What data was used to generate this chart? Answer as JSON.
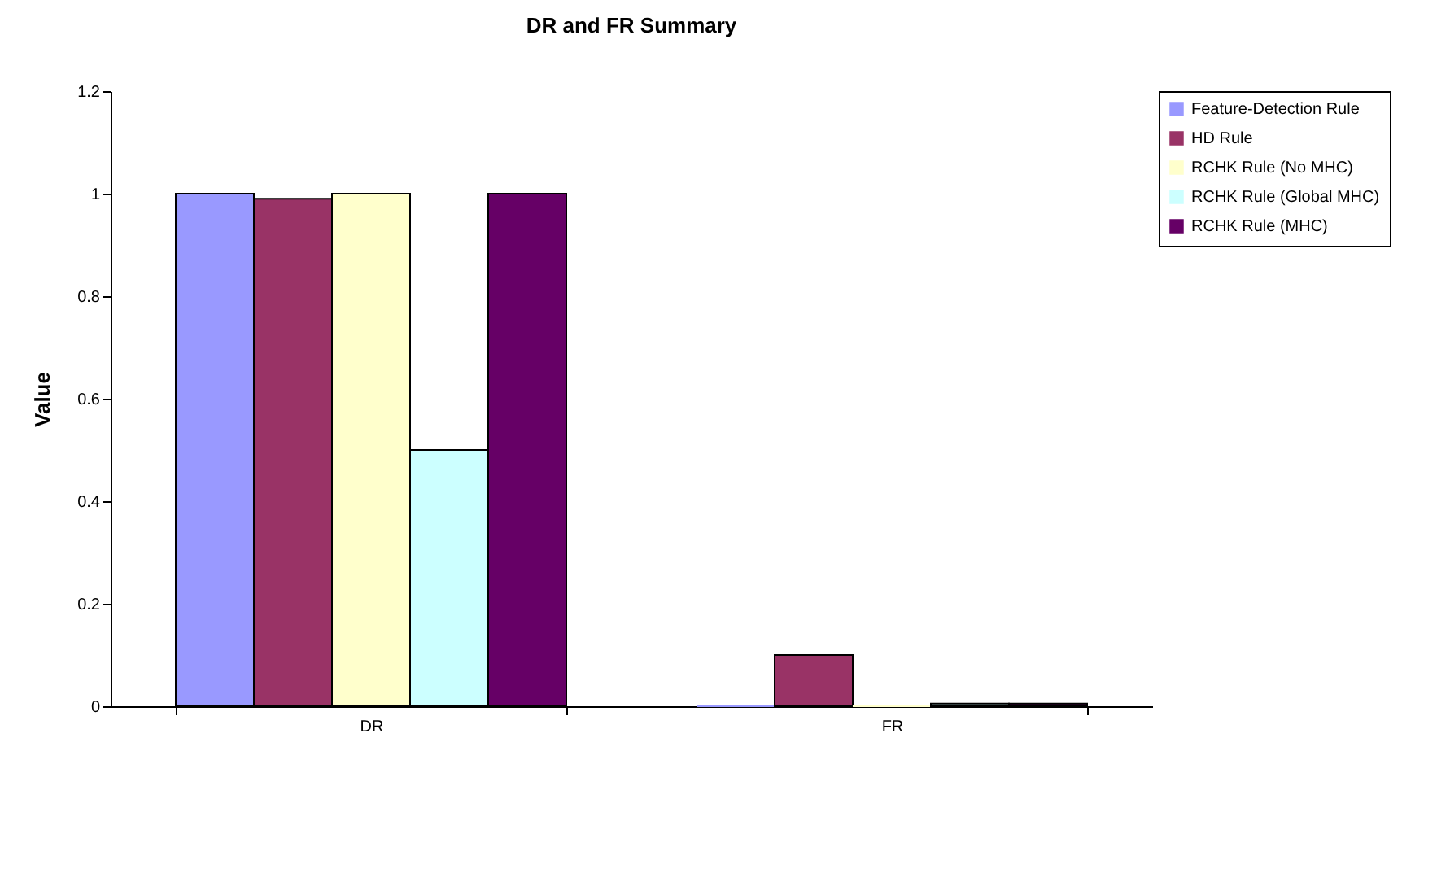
{
  "chart_data": {
    "type": "bar",
    "title": "DR and FR Summary",
    "ylabel": "Value",
    "categories": [
      "DR",
      "FR"
    ],
    "series": [
      {
        "name": "Feature-Detection Rule",
        "color": "#9999ff",
        "values": [
          1,
          0
        ]
      },
      {
        "name": "HD Rule",
        "color": "#993366",
        "values": [
          0.99,
          0.1
        ]
      },
      {
        "name": "RCHK Rule (No MHC)",
        "color": "#ffffcc",
        "values": [
          1,
          0
        ]
      },
      {
        "name": "RCHK Rule (Global MHC)",
        "color": "#ccffff",
        "values": [
          0.5,
          0.005
        ]
      },
      {
        "name": "RCHK Rule (MHC)",
        "color": "#660066",
        "values": [
          1,
          0.005
        ]
      }
    ],
    "ylim": [
      0,
      1.2
    ],
    "yticks": [
      0,
      0.2,
      0.4,
      0.6,
      0.8,
      1,
      1.2
    ],
    "grid": false,
    "legend": "right"
  }
}
